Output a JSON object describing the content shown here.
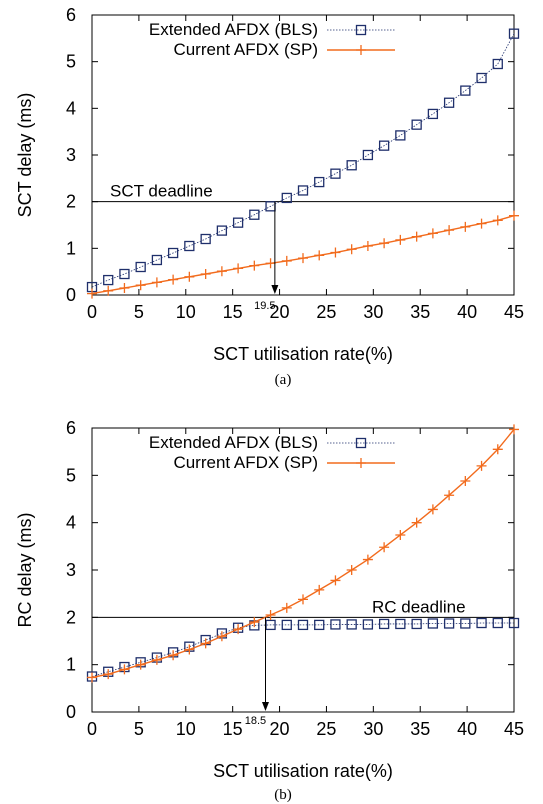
{
  "chart_data": [
    {
      "type": "line",
      "caption": "(a)",
      "xlabel": "SCT utilisation rate(%)",
      "ylabel": "SCT delay (ms)",
      "xlim": [
        0,
        45
      ],
      "ylim": [
        0,
        6
      ],
      "xticks": [
        0,
        5,
        10,
        15,
        20,
        25,
        30,
        35,
        40,
        45
      ],
      "yticks": [
        0,
        1,
        2,
        3,
        4,
        5,
        6
      ],
      "grid": false,
      "legend": "top-left",
      "series": [
        {
          "name": "Extended AFDX (BLS)",
          "color": "#1f2f6b",
          "marker": "square",
          "x": [
            0.0,
            1.73,
            3.46,
            5.19,
            6.92,
            8.65,
            10.38,
            12.12,
            13.85,
            15.58,
            17.31,
            19.04,
            20.77,
            22.5,
            24.23,
            25.96,
            27.69,
            29.42,
            31.15,
            32.88,
            34.62,
            36.35,
            38.08,
            39.81,
            41.54,
            43.27,
            45.0
          ],
          "y": [
            0.17,
            0.32,
            0.45,
            0.6,
            0.75,
            0.9,
            1.05,
            1.2,
            1.38,
            1.55,
            1.72,
            1.9,
            2.08,
            2.24,
            2.42,
            2.6,
            2.78,
            3.0,
            3.2,
            3.42,
            3.65,
            3.88,
            4.12,
            4.38,
            4.65,
            4.95,
            5.6
          ]
        },
        {
          "name": "Current AFDX (SP)",
          "color": "#f26b1d",
          "marker": "plus",
          "x": [
            0.0,
            1.73,
            3.46,
            5.19,
            6.92,
            8.65,
            10.38,
            12.12,
            13.85,
            15.58,
            17.31,
            19.04,
            20.77,
            22.5,
            24.23,
            25.96,
            27.69,
            29.42,
            31.15,
            32.88,
            34.62,
            36.35,
            38.08,
            39.81,
            41.54,
            43.27,
            45.0
          ],
          "y": [
            0.03,
            0.09,
            0.15,
            0.21,
            0.27,
            0.33,
            0.39,
            0.45,
            0.51,
            0.57,
            0.63,
            0.68,
            0.73,
            0.79,
            0.85,
            0.91,
            0.98,
            1.05,
            1.11,
            1.18,
            1.25,
            1.32,
            1.39,
            1.46,
            1.53,
            1.6,
            1.7
          ]
        }
      ],
      "reference_line": {
        "y": 2,
        "label": "SCT deadline"
      },
      "marker_line": {
        "x": 19.5,
        "label": "19.5"
      }
    },
    {
      "type": "line",
      "caption": "(b)",
      "xlabel": "SCT utilisation rate(%)",
      "ylabel": "RC delay (ms)",
      "xlim": [
        0,
        45
      ],
      "ylim": [
        0,
        6
      ],
      "xticks": [
        0,
        5,
        10,
        15,
        20,
        25,
        30,
        35,
        40,
        45
      ],
      "yticks": [
        0,
        1,
        2,
        3,
        4,
        5,
        6
      ],
      "grid": false,
      "legend": "top-left",
      "series": [
        {
          "name": "Extended AFDX (BLS)",
          "color": "#1f2f6b",
          "marker": "square",
          "x": [
            0.0,
            1.73,
            3.46,
            5.19,
            6.92,
            8.65,
            10.38,
            12.12,
            13.85,
            15.58,
            17.31,
            19.04,
            20.77,
            22.5,
            24.23,
            25.96,
            27.69,
            29.42,
            31.15,
            32.88,
            34.62,
            36.35,
            38.08,
            39.81,
            41.54,
            43.27,
            45.0
          ],
          "y": [
            0.75,
            0.85,
            0.95,
            1.05,
            1.15,
            1.26,
            1.38,
            1.52,
            1.66,
            1.78,
            1.83,
            1.84,
            1.84,
            1.84,
            1.84,
            1.85,
            1.85,
            1.85,
            1.86,
            1.86,
            1.86,
            1.87,
            1.87,
            1.87,
            1.88,
            1.88,
            1.88
          ]
        },
        {
          "name": "Current AFDX (SP)",
          "color": "#f26b1d",
          "marker": "plus",
          "x": [
            0.0,
            1.73,
            3.46,
            5.19,
            6.92,
            8.65,
            10.38,
            12.12,
            13.85,
            15.58,
            17.31,
            19.04,
            20.77,
            22.5,
            24.23,
            25.96,
            27.69,
            29.42,
            31.15,
            32.88,
            34.62,
            36.35,
            38.08,
            39.81,
            41.54,
            43.27,
            45.0
          ],
          "y": [
            0.73,
            0.8,
            0.9,
            1.0,
            1.1,
            1.2,
            1.32,
            1.45,
            1.6,
            1.75,
            1.9,
            2.05,
            2.2,
            2.38,
            2.58,
            2.78,
            3.0,
            3.22,
            3.48,
            3.74,
            4.0,
            4.28,
            4.58,
            4.88,
            5.2,
            5.55,
            5.97
          ]
        }
      ],
      "reference_line": {
        "y": 2,
        "label": "RC deadline"
      },
      "marker_line": {
        "x": 18.5,
        "label": "18.5"
      }
    }
  ]
}
